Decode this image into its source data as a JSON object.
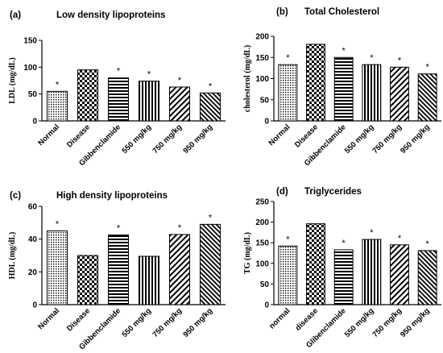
{
  "chart_data": [
    {
      "type": "bar",
      "panel": "(a)",
      "title": "Low density lipoproteins",
      "ylabel": "LDL (mg/dL)",
      "xlabel": "",
      "ylim": [
        0,
        150
      ],
      "yticks": [
        0,
        50,
        100,
        150
      ],
      "categories": [
        "Normal",
        "Disease",
        "Gibbenclamide",
        "550 mg/kg",
        "750 mg/kg",
        "950 mg/kg"
      ],
      "values": [
        55,
        95,
        80,
        74,
        63,
        52
      ],
      "annotations": [
        "*",
        "",
        "*",
        "*",
        "*",
        "*"
      ],
      "patterns": [
        "dots",
        "checker",
        "horizontal",
        "vertical",
        "diagonal",
        "diagonal-dense"
      ],
      "grid": false
    },
    {
      "type": "bar",
      "panel": "(b)",
      "title": "Total Cholesterol",
      "ylabel": "cholesterol (mg/dL)",
      "xlabel": "",
      "ylim": [
        0,
        200
      ],
      "yticks": [
        0,
        50,
        100,
        150,
        200
      ],
      "categories": [
        "Normal",
        "Disease",
        "Gibbenclamide",
        "550 mg/kg",
        "750 mg/kg",
        "950 mg/kg"
      ],
      "values": [
        133,
        181,
        150,
        133,
        127,
        111
      ],
      "annotations": [
        "*",
        "",
        "*",
        "*",
        "*",
        "*"
      ],
      "patterns": [
        "dots",
        "checker",
        "horizontal",
        "vertical",
        "diagonal",
        "diagonal-dense"
      ],
      "grid": false
    },
    {
      "type": "bar",
      "panel": "(c)",
      "title": "High density lipoproteins",
      "ylabel": "HDL (mg/dL)",
      "xlabel": "",
      "ylim": [
        0,
        60
      ],
      "yticks": [
        0,
        20,
        40,
        60
      ],
      "categories": [
        "Normal",
        "Disease",
        "Gibbenclamide",
        "550 mg/kg",
        "750 mg/kg",
        "950 mg/kg"
      ],
      "values": [
        45,
        30,
        42.5,
        29.5,
        42.8,
        49
      ],
      "annotations": [
        "*",
        "",
        "*",
        "",
        "*",
        "*"
      ],
      "patterns": [
        "dots",
        "checker",
        "horizontal",
        "vertical",
        "diagonal",
        "diagonal-dense"
      ],
      "grid": false
    },
    {
      "type": "bar",
      "panel": "(d)",
      "title": "Triglycerides",
      "ylabel": "TG (mg/dL)",
      "xlabel": "",
      "ylim": [
        0,
        250
      ],
      "yticks": [
        0,
        50,
        100,
        150,
        200,
        250
      ],
      "categories": [
        "normal",
        "disease",
        "Glibenclamide",
        "550 mg/kg",
        "750 mg/kg",
        "950 mg/kg"
      ],
      "values": [
        142,
        196,
        133,
        158,
        145,
        131
      ],
      "annotations": [
        "*",
        "",
        "*",
        "*",
        "*",
        "*"
      ],
      "patterns": [
        "dots",
        "checker",
        "horizontal",
        "vertical",
        "diagonal",
        "diagonal-dense"
      ],
      "grid": false
    }
  ]
}
